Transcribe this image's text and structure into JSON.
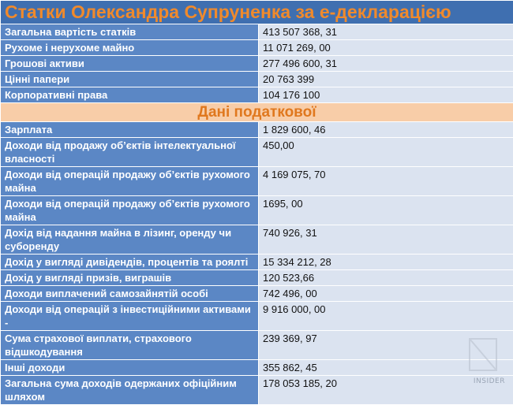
{
  "title": "Статки Олександра Супруненка за е-декларацією",
  "section_title": "Дані податкової",
  "assets_rows": [
    {
      "label": "Загальна вартість статків",
      "value": "413 507 368, 31"
    },
    {
      "label": "Рухоме і нерухоме майно",
      "value": "11 071 269, 00"
    },
    {
      "label": "Грошові активи",
      "value": "277 496 600, 31"
    },
    {
      "label": "Цінні папери",
      "value": "20 763 399"
    },
    {
      "label": "Корпоративні права",
      "value": "104 176 100"
    }
  ],
  "tax_rows": [
    {
      "label": "Зарплата",
      "value": "1 829 600, 46"
    },
    {
      "label": "Доходи від продажу об’єктів інтелектуальної власності",
      "value": "450,00"
    },
    {
      "label": "Доходи від операцій продажу об’єктів рухомого майна",
      "value": "4 169 075, 70"
    },
    {
      "label": "Доходи від операцій продажу об’єктів рухомого майна",
      "value": "1695, 00"
    },
    {
      "label": "Дохід від надання майна в лізинг, оренду чи суборенду",
      "value": "740 926, 31"
    },
    {
      "label": "Дохід у вигляді дивідендів, процентів та роялті",
      "value": "15 334 212, 28"
    },
    {
      "label": "Дохід у вигляді призів, виграшів",
      "value": "120 523,66"
    },
    {
      "label": "Доходи виплачений самозайнятій особі",
      "value": "742 496, 00"
    },
    {
      "label": "Доходи від операцій з інвестиційними активами -",
      "value": "9 916 000, 00"
    },
    {
      "label": "Сума страхової виплати, страхового відшкодування",
      "value": "239 369, 97"
    },
    {
      "label": "Інші доходи",
      "value": "355 862, 45"
    },
    {
      "label": "Загальна сума доходів одержаних офіційним шляхом",
      "value": "178 053 185, 20"
    }
  ],
  "watermark": {
    "text": "INSIDER",
    "icon": "insider-logo-icon"
  }
}
